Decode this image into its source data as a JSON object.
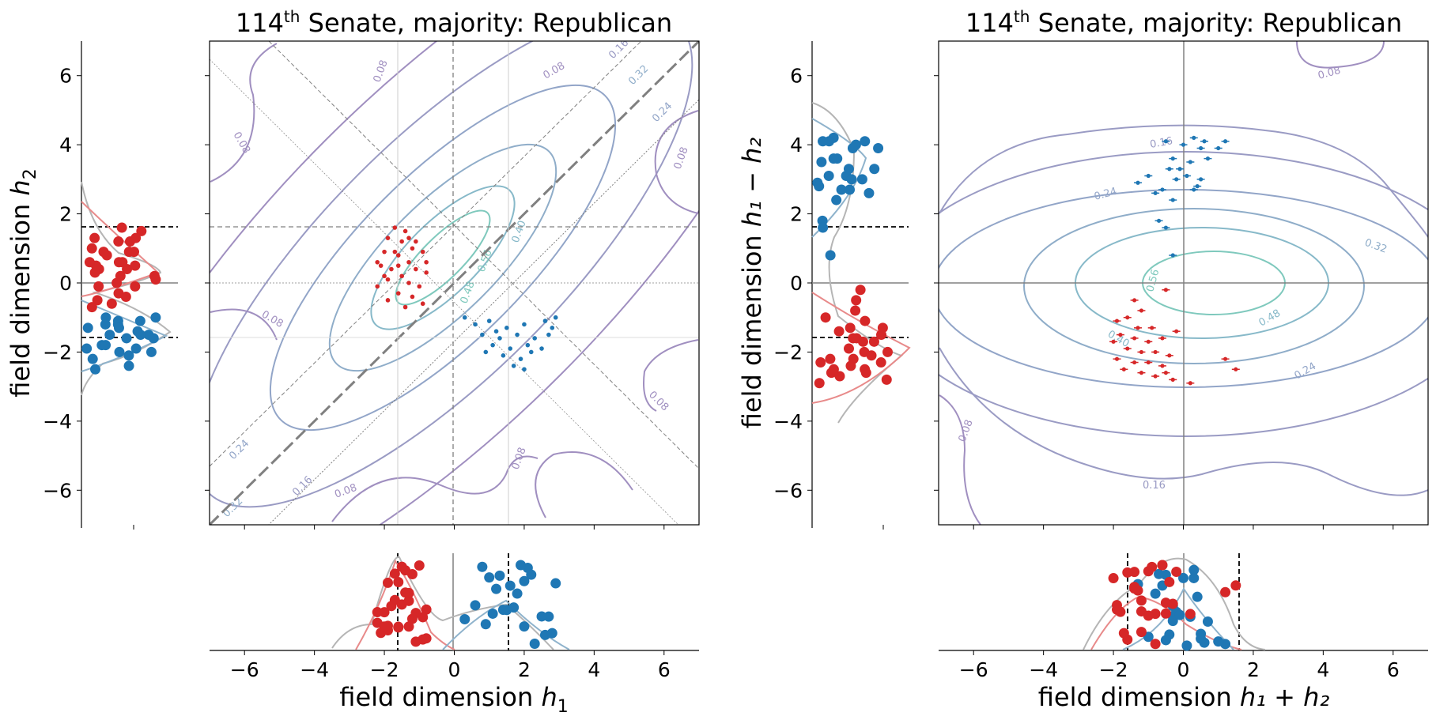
{
  "chart_data": [
    {
      "type": "scatter",
      "panel": "left-main",
      "title_pre": "114",
      "title_sup": "th",
      "title_post": " Senate, majority: Republican",
      "xlabel_pre": "field dimension ",
      "xlabel_var": "h",
      "xlabel_sub": "1",
      "ylabel_pre": "field dimension ",
      "ylabel_var": "h",
      "ylabel_sub": "2",
      "xlim": [
        -7,
        7
      ],
      "ylim": [
        -7,
        7
      ],
      "xticks": [
        "−6",
        "−4",
        "−2",
        "0",
        "2",
        "4",
        "6"
      ],
      "yticks": [
        "−6",
        "−4",
        "−2",
        "0",
        "2",
        "4",
        "6"
      ],
      "reference_lines": [
        -1.6,
        1.6
      ],
      "contour_levels": [
        "0.08",
        "0.16",
        "0.24",
        "0.32",
        "0.40",
        "0.48",
        "0.56"
      ],
      "series": [
        {
          "color": "#d62728",
          "points": [
            [
              -1.7,
              1.6
            ],
            [
              -1.9,
              1.3
            ],
            [
              -1.5,
              1.2
            ],
            [
              -1.2,
              1.0
            ],
            [
              -2.0,
              0.9
            ],
            [
              -1.6,
              0.8
            ],
            [
              -0.9,
              0.9
            ],
            [
              -1.3,
              0.6
            ],
            [
              -2.1,
              0.5
            ],
            [
              -1.8,
              0.4
            ],
            [
              -1.1,
              0.4
            ],
            [
              -1.5,
              0.2
            ],
            [
              -0.8,
              0.3
            ],
            [
              -1.9,
              0.1
            ],
            [
              -1.3,
              0.0
            ],
            [
              -2.2,
              -0.1
            ],
            [
              -1.0,
              -0.1
            ],
            [
              -1.6,
              -0.3
            ],
            [
              -1.2,
              -0.4
            ],
            [
              -1.9,
              -0.5
            ],
            [
              -0.9,
              -0.6
            ],
            [
              -1.4,
              -0.7
            ],
            [
              -1.7,
              0.9
            ],
            [
              -2.0,
              0.2
            ],
            [
              -1.1,
              1.2
            ],
            [
              -1.4,
              1.5
            ],
            [
              -1.6,
              0.5
            ],
            [
              -0.8,
              0.6
            ],
            [
              -2.2,
              0.6
            ],
            [
              -1.3,
              1.3
            ]
          ]
        },
        {
          "color": "#1f77b4",
          "points": [
            [
              0.3,
              -1.0
            ],
            [
              0.6,
              -1.2
            ],
            [
              1.0,
              -1.1
            ],
            [
              1.5,
              -1.3
            ],
            [
              2.0,
              -1.2
            ],
            [
              2.6,
              -1.1
            ],
            [
              2.9,
              -1.0
            ],
            [
              0.8,
              -1.5
            ],
            [
              1.3,
              -1.6
            ],
            [
              1.8,
              -1.5
            ],
            [
              2.3,
              -1.6
            ],
            [
              2.7,
              -1.5
            ],
            [
              1.1,
              -1.8
            ],
            [
              1.6,
              -1.9
            ],
            [
              2.1,
              -1.8
            ],
            [
              2.5,
              -1.9
            ],
            [
              1.4,
              -2.1
            ],
            [
              1.9,
              -2.2
            ],
            [
              2.2,
              -2.0
            ],
            [
              1.7,
              -2.4
            ],
            [
              2.0,
              -2.5
            ],
            [
              0.9,
              -2.0
            ],
            [
              2.8,
              -1.3
            ],
            [
              1.2,
              -1.4
            ]
          ]
        }
      ]
    },
    {
      "type": "scatter",
      "panel": "right-main",
      "title_pre": "114",
      "title_sup": "th",
      "title_post": " Senate, majority: Republican",
      "xlabel_pre": "field dimension ",
      "xlabel_expr": "h₁ + h₂",
      "ylabel_pre": "field dimension ",
      "ylabel_expr": "h₁ − h₂",
      "xlim": [
        -7,
        7
      ],
      "ylim": [
        -7,
        7
      ],
      "xticks": [
        "−6",
        "−4",
        "−2",
        "0",
        "2",
        "4",
        "6"
      ],
      "yticks": [
        "−6",
        "−4",
        "−2",
        "0",
        "2",
        "4",
        "6"
      ],
      "reference_lines": [
        -1.6,
        1.6
      ],
      "contour_levels": [
        "0.08",
        "0.16",
        "0.24",
        "0.32",
        "0.40",
        "0.48",
        "0.56"
      ],
      "series": [
        {
          "color": "#1f77b4",
          "points": [
            [
              -0.5,
              4.1
            ],
            [
              0.3,
              4.2
            ],
            [
              0.6,
              4.1
            ],
            [
              1.2,
              4.1
            ],
            [
              0.0,
              4.0
            ],
            [
              0.5,
              3.9
            ],
            [
              1.0,
              3.9
            ],
            [
              -0.3,
              3.6
            ],
            [
              0.2,
              3.5
            ],
            [
              0.7,
              3.6
            ],
            [
              -0.4,
              3.3
            ],
            [
              0.1,
              3.1
            ],
            [
              0.5,
              3.0
            ],
            [
              -1.0,
              3.1
            ],
            [
              -0.2,
              3.0
            ],
            [
              -1.3,
              2.9
            ],
            [
              -0.6,
              2.7
            ],
            [
              0.3,
              2.7
            ],
            [
              -0.8,
              2.6
            ],
            [
              -0.3,
              2.4
            ],
            [
              -0.7,
              1.8
            ],
            [
              -0.5,
              1.6
            ],
            [
              -0.3,
              0.8
            ],
            [
              0.4,
              2.8
            ],
            [
              -0.1,
              3.3
            ]
          ]
        },
        {
          "color": "#d62728",
          "points": [
            [
              -1.4,
              -0.5
            ],
            [
              -1.2,
              -0.8
            ],
            [
              -1.6,
              -1.0
            ],
            [
              -1.9,
              -1.1
            ],
            [
              -1.3,
              -1.3
            ],
            [
              -0.9,
              -1.3
            ],
            [
              -1.8,
              -1.5
            ],
            [
              -1.4,
              -1.6
            ],
            [
              -1.0,
              -1.7
            ],
            [
              -0.6,
              -1.6
            ],
            [
              -2.0,
              -1.7
            ],
            [
              -1.6,
              -1.9
            ],
            [
              -1.2,
              -2.0
            ],
            [
              -0.8,
              -2.0
            ],
            [
              -0.4,
              -2.1
            ],
            [
              -1.9,
              -2.2
            ],
            [
              -1.4,
              -2.3
            ],
            [
              -1.0,
              -2.3
            ],
            [
              -0.6,
              -2.4
            ],
            [
              -1.7,
              -2.5
            ],
            [
              -1.2,
              -2.6
            ],
            [
              -0.5,
              -2.6
            ],
            [
              -0.8,
              -2.7
            ],
            [
              -0.3,
              -2.8
            ],
            [
              0.2,
              -2.9
            ],
            [
              1.2,
              -2.2
            ],
            [
              1.5,
              -2.5
            ],
            [
              -0.2,
              -1.4
            ],
            [
              -0.5,
              -0.2
            ]
          ]
        }
      ]
    }
  ]
}
